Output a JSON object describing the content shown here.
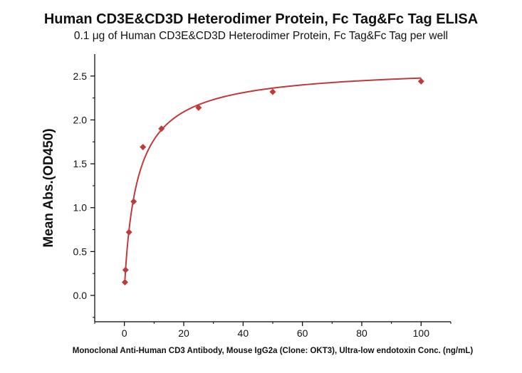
{
  "chart_data": {
    "type": "scatter",
    "title": "Human CD3E&CD3D Heterodimer Protein, Fc Tag&Fc Tag ELISA",
    "subtitle": "0.1 μg of Human CD3E&CD3D Heterodimer Protein, Fc Tag&Fc Tag per well",
    "xlabel": "Monoclonal Anti-Human CD3 Antibody, Mouse IgG2a (Clone: OKT3), Ultra-low endotoxin Conc. (ng/mL)",
    "ylabel": "Mean Abs.(OD450)",
    "xlim": [
      -10,
      110
    ],
    "ylim": [
      -0.3,
      2.75
    ],
    "x_ticks": [
      0,
      20,
      40,
      60,
      80,
      100
    ],
    "y_ticks": [
      0.0,
      0.5,
      1.0,
      1.5,
      2.0,
      2.5
    ],
    "x_tick_labels": [
      "0",
      "20",
      "40",
      "60",
      "80",
      "100"
    ],
    "y_tick_labels": [
      "0.0",
      "0.5",
      "1.0",
      "1.5",
      "2.0",
      "2.5"
    ],
    "grid": false,
    "series": [
      {
        "color": "#c0393b",
        "marker": "diamond",
        "x": [
          0.195,
          0.39,
          1.56,
          3.125,
          6.25,
          12.5,
          25,
          50,
          100
        ],
        "y": [
          0.15,
          0.29,
          0.72,
          1.07,
          1.69,
          1.9,
          2.14,
          2.32,
          2.44
        ],
        "fit": "4PL"
      }
    ]
  }
}
